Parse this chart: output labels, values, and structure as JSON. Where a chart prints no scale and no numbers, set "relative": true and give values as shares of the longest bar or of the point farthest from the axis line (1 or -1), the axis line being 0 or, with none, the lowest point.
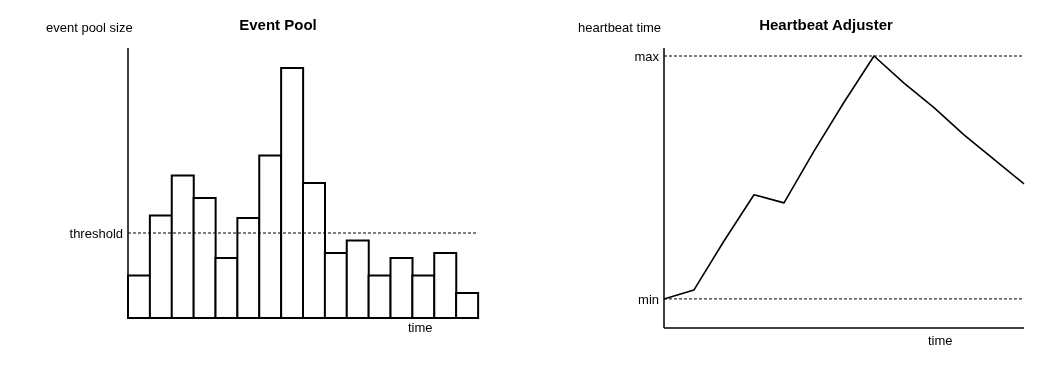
{
  "chart_data": [
    {
      "type": "bar",
      "title": "Event Pool",
      "xlabel": "time",
      "ylabel": "event pool size",
      "relative": true,
      "categories": [
        null,
        null,
        null,
        null,
        null,
        null,
        null,
        null,
        null,
        null,
        null,
        null,
        null,
        null,
        null,
        null
      ],
      "values": [
        0.17,
        0.41,
        0.57,
        0.48,
        0.24,
        0.4,
        0.65,
        1,
        0.54,
        0.26,
        0.31,
        0.17,
        0.24,
        0.17,
        0.26,
        0.1
      ],
      "color": "#ffffff",
      "ref_lines": [
        {
          "axis": "y",
          "value": 0.34,
          "label": "threshold",
          "line_style": "dashed"
        }
      ],
      "legend": false,
      "grid": false
    },
    {
      "type": "line",
      "title": "Heartbeat Adjuster",
      "xlabel": "time",
      "ylabel": "heartbeat time",
      "relative": true,
      "categories": [
        null,
        null,
        null,
        null,
        null,
        null,
        null,
        null,
        null,
        null,
        null,
        null,
        null
      ],
      "series": [
        {
          "color": "#000000",
          "values": [
            0.107,
            0.14,
            0.32,
            0.49,
            0.46,
            0.65,
            0.83,
            1,
            0.9,
            0.81,
            0.71,
            0.62,
            0.53
          ]
        }
      ],
      "ref_lines": [
        {
          "axis": "y",
          "value": 1,
          "label": "max",
          "line_style": "dashed"
        },
        {
          "axis": "y",
          "value": 0.107,
          "label": "min",
          "line_style": "dashed"
        }
      ],
      "marker": "none",
      "line_style": "solid",
      "legend": false,
      "grid": false
    }
  ]
}
